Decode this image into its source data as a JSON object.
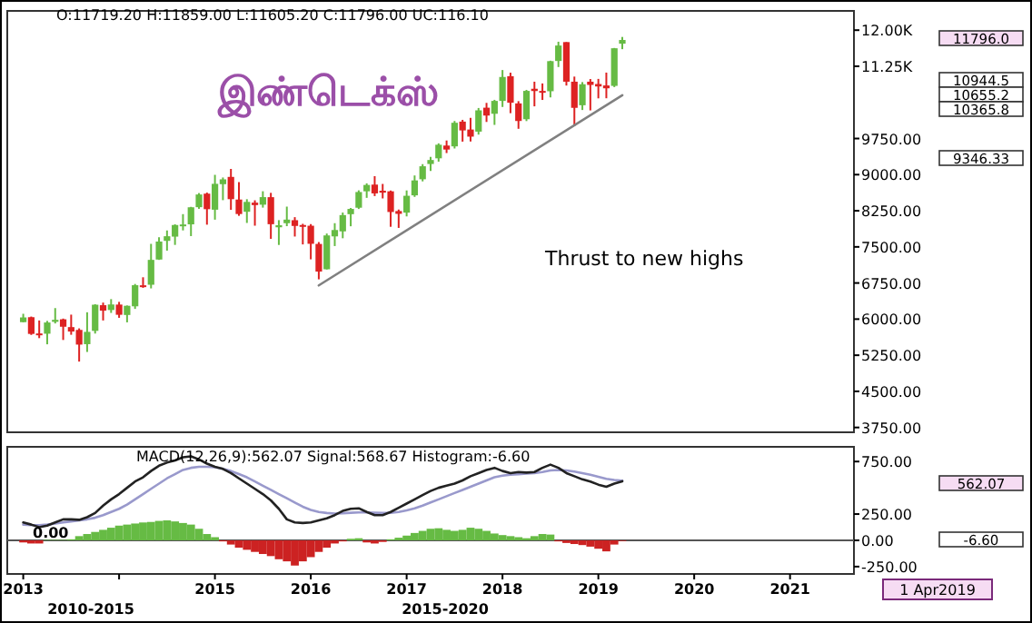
{
  "chart_data": [
    {
      "type": "candlestick",
      "title": "இண்டெக்ஸ்",
      "tick_labels": "y",
      "xlim": [
        "2012-11",
        "2021-09"
      ],
      "ylim": [
        3650,
        12400
      ],
      "yticks": [
        {
          "value": 12000,
          "label": "12.00K"
        },
        {
          "value": 11250,
          "label": "11.25K"
        },
        {
          "value": 9750,
          "label": "9750.00"
        },
        {
          "value": 9000,
          "label": "9000.00"
        },
        {
          "value": 8250,
          "label": "8250.00"
        },
        {
          "value": 7500,
          "label": "7500.00"
        },
        {
          "value": 6750,
          "label": "6750.00"
        },
        {
          "value": 6000,
          "label": "6000.00"
        },
        {
          "value": 5250,
          "label": "5250.00"
        },
        {
          "value": 4500,
          "label": "4500.00"
        },
        {
          "value": 3750,
          "label": "3750.00"
        }
      ],
      "annotations": [
        "O:11719.20 H:11859.00 L:11605.20 C:11796.00 UC:116.10",
        "Thrust to new highs",
        "11796.0",
        "10944.5",
        "10655.2",
        "10365.8",
        "9346.33"
      ],
      "x": [
        "2013-01",
        "2013-02",
        "2013-03",
        "2013-04",
        "2013-05",
        "2013-06",
        "2013-07",
        "2013-08",
        "2013-09",
        "2013-10",
        "2013-11",
        "2013-12",
        "2014-01",
        "2014-02",
        "2014-03",
        "2014-04",
        "2014-05",
        "2014-06",
        "2014-07",
        "2014-08",
        "2014-09",
        "2014-10",
        "2014-11",
        "2014-12",
        "2015-01",
        "2015-02",
        "2015-03",
        "2015-04",
        "2015-05",
        "2015-06",
        "2015-07",
        "2015-08",
        "2015-09",
        "2015-10",
        "2015-11",
        "2015-12",
        "2016-01",
        "2016-02",
        "2016-03",
        "2016-04",
        "2016-05",
        "2016-06",
        "2016-07",
        "2016-08",
        "2016-09",
        "2016-10",
        "2016-11",
        "2016-12",
        "2017-01",
        "2017-02",
        "2017-03",
        "2017-04",
        "2017-05",
        "2017-06",
        "2017-07",
        "2017-08",
        "2017-09",
        "2017-10",
        "2017-11",
        "2017-12",
        "2018-01",
        "2018-02",
        "2018-03",
        "2018-04",
        "2018-05",
        "2018-06",
        "2018-07",
        "2018-08",
        "2018-09",
        "2018-10",
        "2018-11",
        "2018-12",
        "2019-01",
        "2019-02",
        "2019-03",
        "2019-04"
      ],
      "ohlc": [
        [
          5937,
          6111,
          5935,
          6035
        ],
        [
          6040,
          6053,
          5672,
          5693
        ],
        [
          5702,
          5972,
          5605,
          5683
        ],
        [
          5697,
          5963,
          5477,
          5930
        ],
        [
          5944,
          6229,
          5910,
          5985
        ],
        [
          5996,
          6011,
          5567,
          5842
        ],
        [
          5834,
          6093,
          5675,
          5742
        ],
        [
          5776,
          5808,
          5118,
          5471
        ],
        [
          5480,
          6142,
          5318,
          5735
        ],
        [
          5756,
          6309,
          5700,
          6299
        ],
        [
          6289,
          6343,
          5972,
          6176
        ],
        [
          6189,
          6415,
          6129,
          6304
        ],
        [
          6302,
          6358,
          6027,
          6090
        ],
        [
          6086,
          6283,
          5933,
          6277
        ],
        [
          6266,
          6730,
          6212,
          6704
        ],
        [
          6702,
          6869,
          6650,
          6696
        ],
        [
          6714,
          7563,
          6638,
          7230
        ],
        [
          7237,
          7700,
          7230,
          7611
        ],
        [
          7625,
          7841,
          7422,
          7721
        ],
        [
          7713,
          7968,
          7541,
          7954
        ],
        [
          7961,
          8180,
          7842,
          7965
        ],
        [
          7968,
          8331,
          7724,
          8322
        ],
        [
          8324,
          8617,
          8290,
          8588
        ],
        [
          8605,
          8627,
          7961,
          8283
        ],
        [
          8272,
          8996,
          8065,
          8809
        ],
        [
          8802,
          8941,
          8470,
          8902
        ],
        [
          8953,
          9119,
          8269,
          8491
        ],
        [
          8483,
          8845,
          8145,
          8182
        ],
        [
          8229,
          8490,
          7997,
          8434
        ],
        [
          8418,
          8467,
          7940,
          8368
        ],
        [
          8376,
          8655,
          8315,
          8533
        ],
        [
          8532,
          8622,
          7667,
          7971
        ],
        [
          7907,
          8055,
          7540,
          7949
        ],
        [
          7992,
          8336,
          7930,
          8066
        ],
        [
          8054,
          8117,
          7715,
          7935
        ],
        [
          7954,
          7979,
          7551,
          7946
        ],
        [
          7939,
          7973,
          7241,
          7564
        ],
        [
          7561,
          7600,
          6826,
          6987
        ],
        [
          7035,
          7777,
          7030,
          7738
        ],
        [
          7718,
          7992,
          7517,
          7850
        ],
        [
          7822,
          8213,
          7679,
          8160
        ],
        [
          8179,
          8308,
          7928,
          8288
        ],
        [
          8313,
          8674,
          8287,
          8639
        ],
        [
          8654,
          8819,
          8518,
          8786
        ],
        [
          8793,
          8969,
          8555,
          8611
        ],
        [
          8666,
          8807,
          8506,
          8626
        ],
        [
          8654,
          8670,
          7917,
          8224
        ],
        [
          8244,
          8275,
          7894,
          8186
        ],
        [
          8211,
          8672,
          8133,
          8561
        ],
        [
          8570,
          8983,
          8538,
          8880
        ],
        [
          8904,
          9218,
          8860,
          9174
        ],
        [
          9221,
          9368,
          9075,
          9304
        ],
        [
          9339,
          9650,
          9269,
          9621
        ],
        [
          9604,
          9709,
          9448,
          9521
        ],
        [
          9587,
          10114,
          9543,
          10077
        ],
        [
          10101,
          10138,
          9686,
          9918
        ],
        [
          9937,
          10179,
          9688,
          9789
        ],
        [
          9893,
          10384,
          9831,
          10335
        ],
        [
          10390,
          10490,
          10094,
          10227
        ],
        [
          10264,
          10553,
          10033,
          10531
        ],
        [
          10531,
          11172,
          10405,
          11028
        ],
        [
          11044,
          11117,
          10276,
          10493
        ],
        [
          10479,
          10526,
          9952,
          10114
        ],
        [
          10151,
          10760,
          10112,
          10739
        ],
        [
          10783,
          10930,
          10418,
          10736
        ],
        [
          10738,
          10894,
          10551,
          10714
        ],
        [
          10732,
          11366,
          10604,
          11357
        ],
        [
          11360,
          11760,
          11234,
          11681
        ],
        [
          11752,
          11752,
          10850,
          10930
        ],
        [
          10930,
          11036,
          10005,
          10387
        ],
        [
          10441,
          10922,
          10342,
          10877
        ],
        [
          10930,
          10985,
          10334,
          10863
        ],
        [
          10882,
          10988,
          10584,
          10831
        ],
        [
          10852,
          11119,
          10586,
          10793
        ],
        [
          10843,
          11630,
          10818,
          11624
        ],
        [
          11719.2,
          11859,
          11605.2,
          11796
        ]
      ],
      "series": [
        {
          "type": "line",
          "color": "#808080",
          "x": [
            "2016-02",
            "2019-04"
          ],
          "values": [
            6700,
            10650
          ]
        }
      ]
    },
    {
      "type": "line",
      "title": "MACD(12,26,9):562.07 Signal:568.67 Histogram:-6.60",
      "xlim": [
        "2012-11",
        "2021-09"
      ],
      "ylim": [
        -320,
        890
      ],
      "xticks": [
        {
          "value": "2013-01",
          "label": "2013"
        },
        {
          "value": "2014-01",
          "label": null
        },
        {
          "value": "2015-01",
          "label": "2015"
        },
        {
          "value": "2016-01",
          "label": "2016"
        },
        {
          "value": "2017-01",
          "label": "2017"
        },
        {
          "value": "2018-01",
          "label": "2018"
        },
        {
          "value": "2019-01",
          "label": "2019"
        },
        {
          "value": "2020-01",
          "label": "2020"
        },
        {
          "value": "2021-01",
          "label": "2021"
        }
      ],
      "yticks": [
        {
          "value": 750,
          "label": "750.00"
        },
        {
          "value": 250,
          "label": "250.00"
        },
        {
          "value": 0,
          "label": "0.00"
        },
        {
          "value": -250,
          "label": "-250.00"
        }
      ],
      "ref_lines": [
        {
          "axis": "y",
          "value": 0,
          "color": "#555555"
        }
      ],
      "annotations": [
        "2010-2015",
        "2015-2020",
        "1 Apr2019",
        "0.00",
        "562.07",
        "-6.60"
      ],
      "x": [
        "2013-01",
        "2013-02",
        "2013-03",
        "2013-04",
        "2013-05",
        "2013-06",
        "2013-07",
        "2013-08",
        "2013-09",
        "2013-10",
        "2013-11",
        "2013-12",
        "2014-01",
        "2014-02",
        "2014-03",
        "2014-04",
        "2014-05",
        "2014-06",
        "2014-07",
        "2014-08",
        "2014-09",
        "2014-10",
        "2014-11",
        "2014-12",
        "2015-01",
        "2015-02",
        "2015-03",
        "2015-04",
        "2015-05",
        "2015-06",
        "2015-07",
        "2015-08",
        "2015-09",
        "2015-10",
        "2015-11",
        "2015-12",
        "2016-01",
        "2016-02",
        "2016-03",
        "2016-04",
        "2016-05",
        "2016-06",
        "2016-07",
        "2016-08",
        "2016-09",
        "2016-10",
        "2016-11",
        "2016-12",
        "2017-01",
        "2017-02",
        "2017-03",
        "2017-04",
        "2017-05",
        "2017-06",
        "2017-07",
        "2017-08",
        "2017-09",
        "2017-10",
        "2017-11",
        "2017-12",
        "2018-01",
        "2018-02",
        "2018-03",
        "2018-04",
        "2018-05",
        "2018-06",
        "2018-07",
        "2018-08",
        "2018-09",
        "2018-10",
        "2018-11",
        "2018-12",
        "2019-01",
        "2019-02",
        "2019-03",
        "2019-04"
      ],
      "series": [
        {
          "type": "bar",
          "color": "#66bb44",
          "values": [
            null,
            null,
            null,
            5,
            5,
            5,
            10,
            40,
            60,
            80,
            100,
            120,
            140,
            150,
            160,
            170,
            175,
            185,
            190,
            180,
            165,
            150,
            110,
            60,
            30,
            null,
            null,
            null,
            null,
            null,
            null,
            null,
            null,
            null,
            null,
            null,
            null,
            null,
            null,
            null,
            null,
            15,
            20,
            null,
            null,
            null,
            10,
            25,
            45,
            70,
            90,
            110,
            115,
            100,
            90,
            100,
            120,
            110,
            90,
            65,
            50,
            40,
            30,
            20,
            40,
            60,
            55,
            null,
            null,
            null,
            null,
            null,
            null,
            null,
            null,
            null
          ]
        },
        {
          "type": "bar",
          "color": "#cc2222",
          "values": [
            -20,
            -30,
            -30,
            null,
            null,
            null,
            null,
            null,
            null,
            null,
            null,
            null,
            null,
            null,
            null,
            null,
            null,
            null,
            null,
            null,
            null,
            null,
            null,
            null,
            null,
            -10,
            -40,
            -70,
            -90,
            -110,
            -130,
            -150,
            -180,
            -200,
            -240,
            -200,
            -160,
            -110,
            -70,
            -30,
            -10,
            null,
            null,
            -20,
            -30,
            -15,
            null,
            null,
            null,
            null,
            null,
            null,
            null,
            null,
            null,
            null,
            null,
            null,
            null,
            null,
            null,
            null,
            null,
            null,
            null,
            null,
            null,
            -10,
            -25,
            -35,
            -45,
            -60,
            -80,
            -105,
            -40,
            -6.6
          ]
        },
        {
          "color": "#9999cc",
          "values": [
            150,
            145,
            145,
            150,
            160,
            170,
            180,
            190,
            200,
            215,
            240,
            270,
            300,
            340,
            390,
            440,
            490,
            540,
            590,
            630,
            670,
            690,
            700,
            700,
            695,
            680,
            660,
            630,
            600,
            560,
            520,
            480,
            440,
            400,
            360,
            320,
            290,
            270,
            260,
            255,
            258,
            262,
            265,
            265,
            262,
            260,
            262,
            270,
            285,
            305,
            330,
            360,
            390,
            420,
            450,
            480,
            510,
            540,
            570,
            600,
            615,
            625,
            630,
            635,
            640,
            650,
            665,
            670,
            665,
            655,
            640,
            625,
            605,
            585,
            575,
            568.67
          ]
        },
        {
          "color": "#222222",
          "values": [
            170,
            150,
            125,
            140,
            170,
            200,
            200,
            195,
            220,
            260,
            330,
            390,
            440,
            500,
            560,
            600,
            660,
            710,
            740,
            760,
            790,
            800,
            770,
            730,
            700,
            680,
            640,
            590,
            540,
            490,
            440,
            380,
            300,
            200,
            170,
            165,
            170,
            190,
            210,
            240,
            280,
            300,
            305,
            270,
            240,
            240,
            270,
            310,
            350,
            390,
            430,
            470,
            500,
            520,
            540,
            570,
            610,
            640,
            670,
            690,
            660,
            640,
            650,
            645,
            650,
            690,
            720,
            690,
            640,
            610,
            580,
            560,
            530,
            510,
            540,
            562.07
          ]
        }
      ]
    }
  ]
}
